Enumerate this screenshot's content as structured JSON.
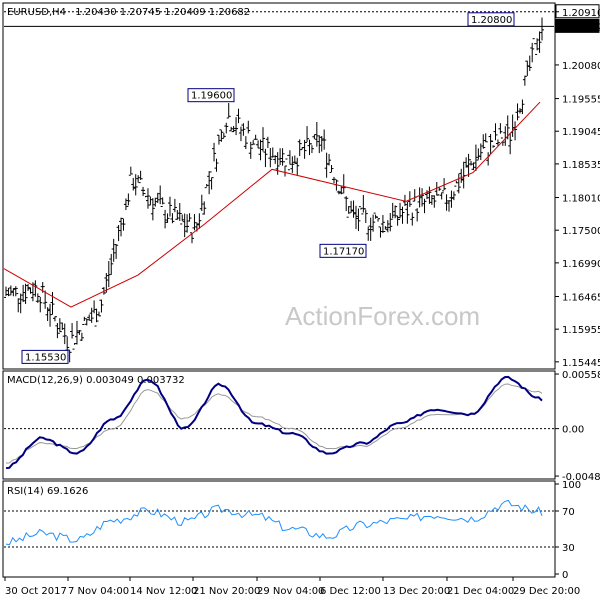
{
  "header": {
    "symbol": "EURUSD,H4",
    "values": "1.20430 1.20745 1.20409 1.20682"
  },
  "watermark": "ActionForex.com",
  "colors": {
    "price_bars": "#000000",
    "moving_average": "#cc0000",
    "macd_line": "#000080",
    "signal_line": "#999999",
    "rsi_line": "#1e90ff",
    "level_line": "#000000"
  },
  "chart_data": [
    {
      "type": "ohlc",
      "title": "EURUSD,H4",
      "ylim": [
        1.1538,
        1.21
      ],
      "y_ticks": [
        "1.20910",
        "1.20682",
        "1.20080",
        "1.19555",
        "1.19045",
        "1.18535",
        "1.18010",
        "1.17500",
        "1.16990",
        "1.16465",
        "1.15955",
        "1.15445"
      ],
      "x_ticks": [
        "30 Oct 2017",
        "7 Nov 04:00",
        "14 Nov 12:00",
        "21 Nov 20:00",
        "29 Nov 04:00",
        "6 Dec 12:00",
        "13 Dec 20:00",
        "21 Dec 04:00",
        "29 Dec 20:00"
      ],
      "annotations": [
        {
          "label": "1.15530",
          "value": 1.1553,
          "x": "7 Nov 04:00"
        },
        {
          "label": "1.19600",
          "value": 1.196,
          "x": "21 Nov 20:00"
        },
        {
          "label": "1.17170",
          "value": 1.1717,
          "x": "6 Dec 12:00"
        },
        {
          "label": "1.20800",
          "value": 1.208,
          "x": "29 Dec 20:00"
        }
      ],
      "current_price": {
        "label": "1.20682",
        "value": 1.20682
      },
      "top_level": {
        "label": "1.20910",
        "value": 1.2091
      },
      "close_path": [
        {
          "x": "30 Oct 2017",
          "y": 1.165
        },
        {
          "x": "2 Nov",
          "y": 1.166
        },
        {
          "x": "7 Nov 04:00",
          "y": 1.1575
        },
        {
          "x": "9 Nov",
          "y": 1.163
        },
        {
          "x": "14 Nov 12:00",
          "y": 1.183
        },
        {
          "x": "17 Nov",
          "y": 1.178
        },
        {
          "x": "21 Nov 20:00",
          "y": 1.175
        },
        {
          "x": "24 Nov",
          "y": 1.193
        },
        {
          "x": "27 Nov",
          "y": 1.188
        },
        {
          "x": "29 Nov 04:00",
          "y": 1.186
        },
        {
          "x": "1 Dec",
          "y": 1.189
        },
        {
          "x": "6 Dec 12:00",
          "y": 1.177
        },
        {
          "x": "8 Dec",
          "y": 1.176
        },
        {
          "x": "13 Dec 20:00",
          "y": 1.179
        },
        {
          "x": "18 Dec",
          "y": 1.18
        },
        {
          "x": "21 Dec 04:00",
          "y": 1.187
        },
        {
          "x": "26 Dec",
          "y": 1.19
        },
        {
          "x": "29 Dec 20:00",
          "y": 1.2068
        }
      ],
      "moving_average": [
        {
          "x": "30 Oct 2017",
          "y": 1.169
        },
        {
          "x": "7 Nov 04:00",
          "y": 1.163
        },
        {
          "x": "14 Nov 12:00",
          "y": 1.168
        },
        {
          "x": "21 Nov 20:00",
          "y": 1.176
        },
        {
          "x": "29 Nov 04:00",
          "y": 1.1845
        },
        {
          "x": "6 Dec 12:00",
          "y": 1.182
        },
        {
          "x": "13 Dec 20:00",
          "y": 1.1795
        },
        {
          "x": "21 Dec 04:00",
          "y": 1.184
        },
        {
          "x": "29 Dec 20:00",
          "y": 1.195
        }
      ]
    },
    {
      "type": "line",
      "title": "MACD(12,26,9) 0.003049 0.003732",
      "ylim": [
        -0.00485,
        0.00559
      ],
      "y_ticks": [
        "0.005587",
        "0.00",
        "-0.004855"
      ],
      "series": [
        {
          "name": "MACD",
          "values": [
            -0.004,
            -0.001,
            -0.0025,
            0.001,
            0.005,
            0.0,
            0.0045,
            0.0005,
            -0.0005,
            -0.0025,
            -0.0015,
            0.0005,
            0.002,
            0.0015,
            0.0052,
            0.003
          ]
        },
        {
          "name": "Signal",
          "values": [
            -0.0035,
            -0.0015,
            -0.002,
            0.0,
            0.004,
            0.001,
            0.0035,
            0.0012,
            0.0,
            -0.002,
            -0.0018,
            0.0,
            0.0015,
            0.0015,
            0.0045,
            0.0037
          ]
        }
      ]
    },
    {
      "type": "line",
      "title": "RSI(14) 69.1626",
      "ylim": [
        0,
        100
      ],
      "y_ticks": [
        "100",
        "70",
        "30",
        "0"
      ],
      "levels": [
        70,
        30
      ],
      "series": [
        {
          "name": "RSI",
          "values": [
            35,
            45,
            38,
            60,
            70,
            58,
            72,
            65,
            50,
            42,
            55,
            60,
            66,
            62,
            78,
            69
          ]
        }
      ]
    }
  ]
}
